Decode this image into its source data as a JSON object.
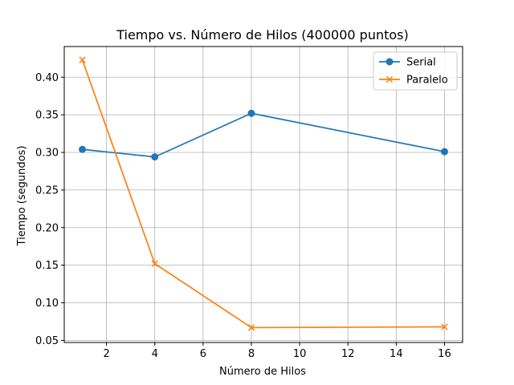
{
  "chart_data": {
    "type": "line",
    "title": "Tiempo vs. Número de Hilos (400000 puntos)",
    "xlabel": "Número de Hilos",
    "ylabel": "Tiempo (segundos)",
    "x": [
      1,
      4,
      8,
      16
    ],
    "series": [
      {
        "name": "Serial",
        "values": [
          0.304,
          0.294,
          0.352,
          0.301
        ],
        "color": "#1f77b4",
        "marker": "circle"
      },
      {
        "name": "Paralelo",
        "values": [
          0.423,
          0.152,
          0.067,
          0.068
        ],
        "color": "#ff7f0e",
        "marker": "x"
      }
    ],
    "xlim": [
      0.25,
      16.75
    ],
    "ylim": [
      0.0472,
      0.4408
    ],
    "xticks": [
      2,
      4,
      6,
      8,
      10,
      12,
      14,
      16
    ],
    "xtick_labels": [
      "2",
      "4",
      "6",
      "8",
      "10",
      "12",
      "14",
      "16"
    ],
    "yticks": [
      0.05,
      0.1,
      0.15,
      0.2,
      0.25,
      0.3,
      0.35,
      0.4
    ],
    "ytick_labels": [
      "0.05",
      "0.10",
      "0.15",
      "0.20",
      "0.25",
      "0.30",
      "0.35",
      "0.40"
    ],
    "grid": true,
    "legend_position": "top-right"
  }
}
